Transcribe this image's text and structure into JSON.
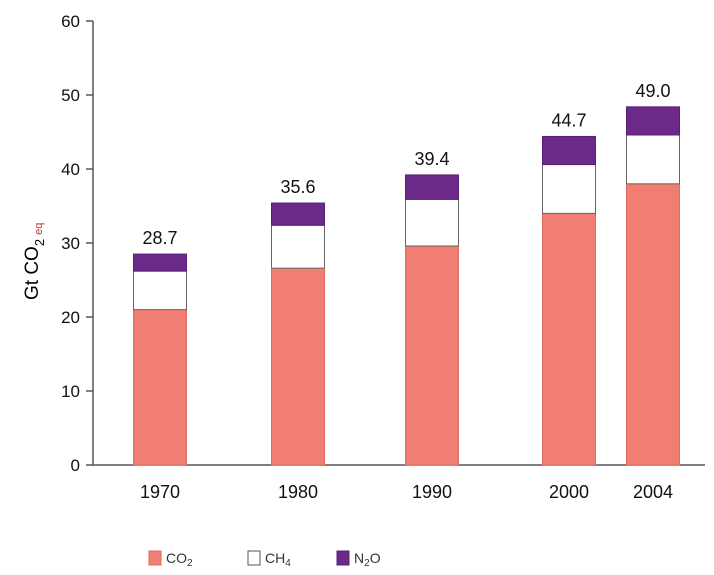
{
  "chart_data": {
    "type": "bar",
    "stacked": true,
    "categories": [
      "1970",
      "1980",
      "1990",
      "2000",
      "2004"
    ],
    "series": [
      {
        "name": "CO2",
        "values": [
          21.0,
          26.6,
          29.6,
          34.0,
          38.0
        ],
        "color": "#f07e72"
      },
      {
        "name": "CH4",
        "values": [
          5.2,
          5.8,
          6.3,
          6.6,
          6.6
        ],
        "color": "#ffffff"
      },
      {
        "name": "N2O",
        "values": [
          2.3,
          3.0,
          3.3,
          3.8,
          3.8
        ],
        "color": "#6b2a8a"
      }
    ],
    "totals": [
      "28.7",
      "35.6",
      "39.4",
      "44.7",
      "49.0"
    ],
    "ylabel": "Gt CO2 eq",
    "ylim": [
      0,
      60
    ],
    "yticks": [
      "0",
      "10",
      "20",
      "30",
      "40",
      "50",
      "60"
    ],
    "grid": false,
    "legend_position": "bottom-left"
  },
  "legend": {
    "co2_main": "CO",
    "co2_sub": "2",
    "ch4_main": "CH",
    "ch4_sub": "4",
    "n2o_main": "N",
    "n2o_sub": "2",
    "n2o_tail": "O"
  },
  "axis": {
    "ylabel_main": "Gt CO",
    "ylabel_sub": "2",
    "ylabel_eq": "eq"
  }
}
